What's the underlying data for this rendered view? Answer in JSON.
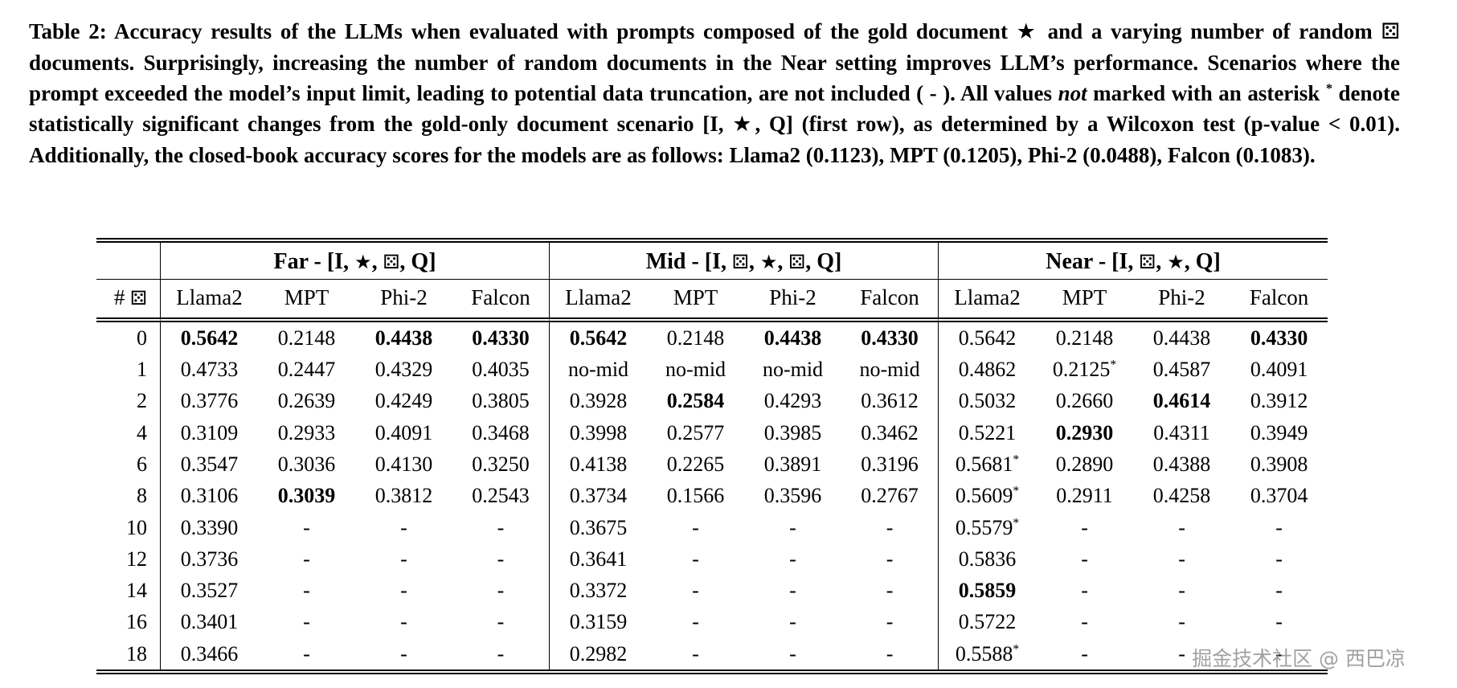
{
  "icons": {
    "star": "★",
    "dice": "⚄"
  },
  "caption": {
    "segments": [
      {
        "t": "Table 2: Accuracy results of the LLMs when evaluated with prompts composed of the gold document "
      },
      {
        "icon": "star"
      },
      {
        "t": " and a varying number of random "
      },
      {
        "icon": "dice"
      },
      {
        "t": " documents. Surprisingly, increasing the number of random documents in the Near setting improves LLM’s performance. Scenarios where the prompt exceeded the model’s input limit, leading to potential data truncation, are not included ( - ). All values "
      },
      {
        "t": "not",
        "italic": true
      },
      {
        "t": " marked with an asterisk "
      },
      {
        "t": "*",
        "sup": true
      },
      {
        "t": " denote statistically significant changes from the gold-only document scenario [I, "
      },
      {
        "icon": "star"
      },
      {
        "t": ", Q] (first row), as determined by a Wilcoxon test (p-value < 0.01). Additionally, the closed-book accuracy scores for the models are as follows: Llama2 (0.1123), MPT (0.1205), Phi-2 (0.0488), Falcon (0.1083)."
      }
    ]
  },
  "table": {
    "groups": [
      {
        "name": "Far",
        "segments": [
          {
            "t": "Far - [I, "
          },
          {
            "icon": "star"
          },
          {
            "t": ", "
          },
          {
            "icon": "dice"
          },
          {
            "t": ", Q]"
          }
        ]
      },
      {
        "name": "Mid",
        "segments": [
          {
            "t": "Mid - [I, "
          },
          {
            "icon": "dice"
          },
          {
            "t": ", "
          },
          {
            "icon": "star"
          },
          {
            "t": ", "
          },
          {
            "icon": "dice"
          },
          {
            "t": ", Q]"
          }
        ]
      },
      {
        "name": "Near",
        "segments": [
          {
            "t": "Near - [I, "
          },
          {
            "icon": "dice"
          },
          {
            "t": ", "
          },
          {
            "icon": "star"
          },
          {
            "t": ", Q]"
          }
        ]
      }
    ],
    "corner_segments": [
      {
        "t": "# "
      },
      {
        "icon": "dice"
      }
    ],
    "model_headers": [
      "Llama2",
      "MPT",
      "Phi-2",
      "Falcon"
    ],
    "rows": [
      {
        "n": "0",
        "cells": [
          {
            "v": "0.5642",
            "b": 1
          },
          "0.2148",
          {
            "v": "0.4438",
            "b": 1
          },
          {
            "v": "0.4330",
            "b": 1
          },
          {
            "v": "0.5642",
            "b": 1
          },
          "0.2148",
          {
            "v": "0.4438",
            "b": 1
          },
          {
            "v": "0.4330",
            "b": 1
          },
          "0.5642",
          "0.2148",
          "0.4438",
          {
            "v": "0.4330",
            "b": 1
          }
        ]
      },
      {
        "n": "1",
        "cells": [
          "0.4733",
          "0.2447",
          "0.4329",
          "0.4035",
          "no-mid",
          "no-mid",
          "no-mid",
          "no-mid",
          "0.4862",
          {
            "v": "0.2125",
            "s": 1
          },
          "0.4587",
          "0.4091"
        ]
      },
      {
        "n": "2",
        "cells": [
          "0.3776",
          "0.2639",
          "0.4249",
          "0.3805",
          "0.3928",
          {
            "v": "0.2584",
            "b": 1
          },
          "0.4293",
          "0.3612",
          "0.5032",
          "0.2660",
          {
            "v": "0.4614",
            "b": 1
          },
          "0.3912"
        ]
      },
      {
        "n": "4",
        "cells": [
          "0.3109",
          "0.2933",
          "0.4091",
          "0.3468",
          "0.3998",
          "0.2577",
          "0.3985",
          "0.3462",
          "0.5221",
          {
            "v": "0.2930",
            "b": 1
          },
          "0.4311",
          "0.3949"
        ]
      },
      {
        "n": "6",
        "cells": [
          "0.3547",
          "0.3036",
          "0.4130",
          "0.3250",
          "0.4138",
          "0.2265",
          "0.3891",
          "0.3196",
          {
            "v": "0.5681",
            "s": 1
          },
          "0.2890",
          "0.4388",
          "0.3908"
        ]
      },
      {
        "n": "8",
        "cells": [
          "0.3106",
          {
            "v": "0.3039",
            "b": 1
          },
          "0.3812",
          "0.2543",
          "0.3734",
          "0.1566",
          "0.3596",
          "0.2767",
          {
            "v": "0.5609",
            "s": 1
          },
          "0.2911",
          "0.4258",
          "0.3704"
        ]
      },
      {
        "n": "10",
        "cells": [
          "0.3390",
          "-",
          "-",
          "-",
          "0.3675",
          "-",
          "-",
          "-",
          {
            "v": "0.5579",
            "s": 1
          },
          "-",
          "-",
          "-"
        ]
      },
      {
        "n": "12",
        "cells": [
          "0.3736",
          "-",
          "-",
          "-",
          "0.3641",
          "-",
          "-",
          "-",
          "0.5836",
          "-",
          "-",
          "-"
        ]
      },
      {
        "n": "14",
        "cells": [
          "0.3527",
          "-",
          "-",
          "-",
          "0.3372",
          "-",
          "-",
          "-",
          {
            "v": "0.5859",
            "b": 1
          },
          "-",
          "-",
          "-"
        ]
      },
      {
        "n": "16",
        "cells": [
          "0.3401",
          "-",
          "-",
          "-",
          "0.3159",
          "-",
          "-",
          "-",
          "0.5722",
          "-",
          "-",
          "-"
        ]
      },
      {
        "n": "18",
        "cells": [
          "0.3466",
          "-",
          "-",
          "-",
          "0.2982",
          "-",
          "-",
          "-",
          {
            "v": "0.5588",
            "s": 1
          },
          "-",
          "-",
          "-"
        ]
      }
    ]
  },
  "watermark": "掘金技术社区 @ 西巴凉"
}
